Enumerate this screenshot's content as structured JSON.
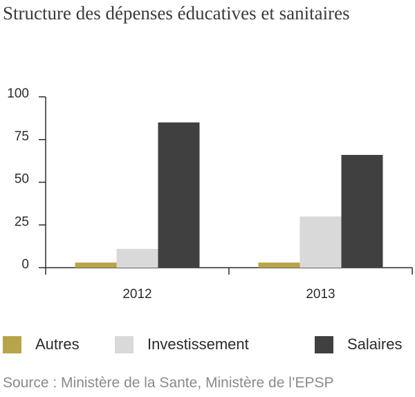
{
  "chart_data": {
    "type": "bar",
    "title": "Structure des dépenses éducatives et sanitaires",
    "categories": [
      "2012",
      "2013"
    ],
    "series": [
      {
        "name": "Autres",
        "color": "#b8a44a",
        "values": [
          3,
          3
        ]
      },
      {
        "name": "Investissement",
        "color": "#d9d9d9",
        "values": [
          11,
          30
        ]
      },
      {
        "name": "Salaires",
        "color": "#404040",
        "values": [
          85,
          66
        ]
      }
    ],
    "ylim": [
      0,
      100
    ],
    "yticks": [
      "0",
      "25",
      "50",
      "75",
      "100"
    ],
    "xlabel": "",
    "ylabel": "",
    "grid": false,
    "legend_position": "bottom"
  },
  "source": "Source : Ministère de la Sante, Ministère de l’EPSP"
}
